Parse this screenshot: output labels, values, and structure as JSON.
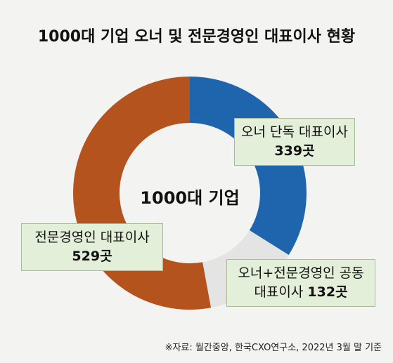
{
  "chart_data": {
    "type": "donut",
    "title": "1000대 기업 오너 및 전문경영인 대표이사 현황",
    "center_label": "1000대 기업",
    "categories": [
      "오너 단독 대표이사",
      "오너+전문경영인 공동 대표이사",
      "전문경영인 대표이사"
    ],
    "values": [
      339,
      132,
      529
    ],
    "value_labels": [
      "339곳",
      "132곳",
      "529곳"
    ],
    "colors": [
      "#1f65ae",
      "#e4e4e4",
      "#b4531d"
    ],
    "source": "※자료: 월간중앙, 한국CXO연구소, 2022년 3월 말 기준"
  }
}
